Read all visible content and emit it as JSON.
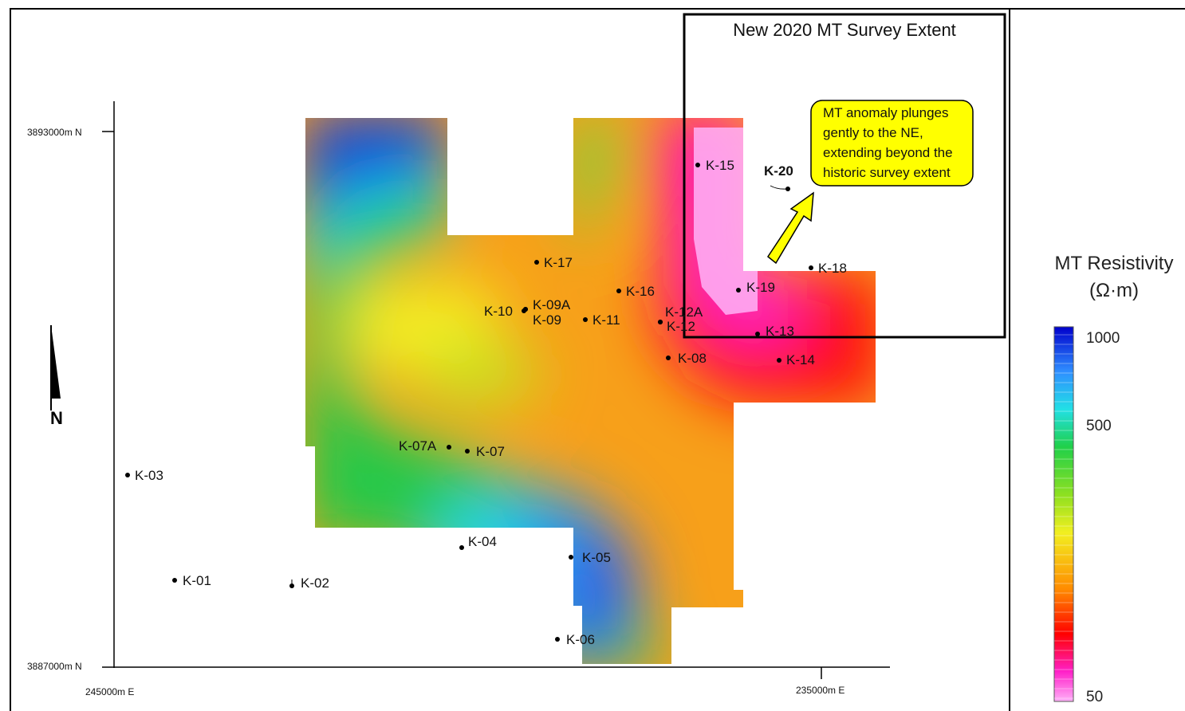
{
  "survey_box": {
    "title": "New 2020 MT Survey Extent"
  },
  "callout": {
    "lines": [
      "MT anomaly plunges",
      "gently to the NE,",
      "extending beyond the",
      "historic survey extent"
    ],
    "fill_color": "#ffff00"
  },
  "axes": {
    "northing_top": "3893000m N",
    "northing_bottom": "3887000m N",
    "easting_left": "245000m E",
    "easting_right": "235000m E"
  },
  "north_arrow": {
    "label": "N"
  },
  "legend": {
    "title_line1": "MT Resistivity",
    "title_line2": "(Ω·m)",
    "ticks": [
      "1000",
      "500",
      "50"
    ]
  },
  "wells": [
    {
      "name": "K-15"
    },
    {
      "name": "K-20"
    },
    {
      "name": "K-18"
    },
    {
      "name": "K-17"
    },
    {
      "name": "K-16"
    },
    {
      "name": "K-19"
    },
    {
      "name": "K-10"
    },
    {
      "name": "K-09A"
    },
    {
      "name": "K-09"
    },
    {
      "name": "K-11"
    },
    {
      "name": "K-12A"
    },
    {
      "name": "K-12"
    },
    {
      "name": "K-13"
    },
    {
      "name": "K-08"
    },
    {
      "name": "K-14"
    },
    {
      "name": "K-07A"
    },
    {
      "name": "K-07"
    },
    {
      "name": "K-03"
    },
    {
      "name": "K-04"
    },
    {
      "name": "K-05"
    },
    {
      "name": "K-01"
    },
    {
      "name": "K-02"
    },
    {
      "name": "K-06"
    }
  ]
}
